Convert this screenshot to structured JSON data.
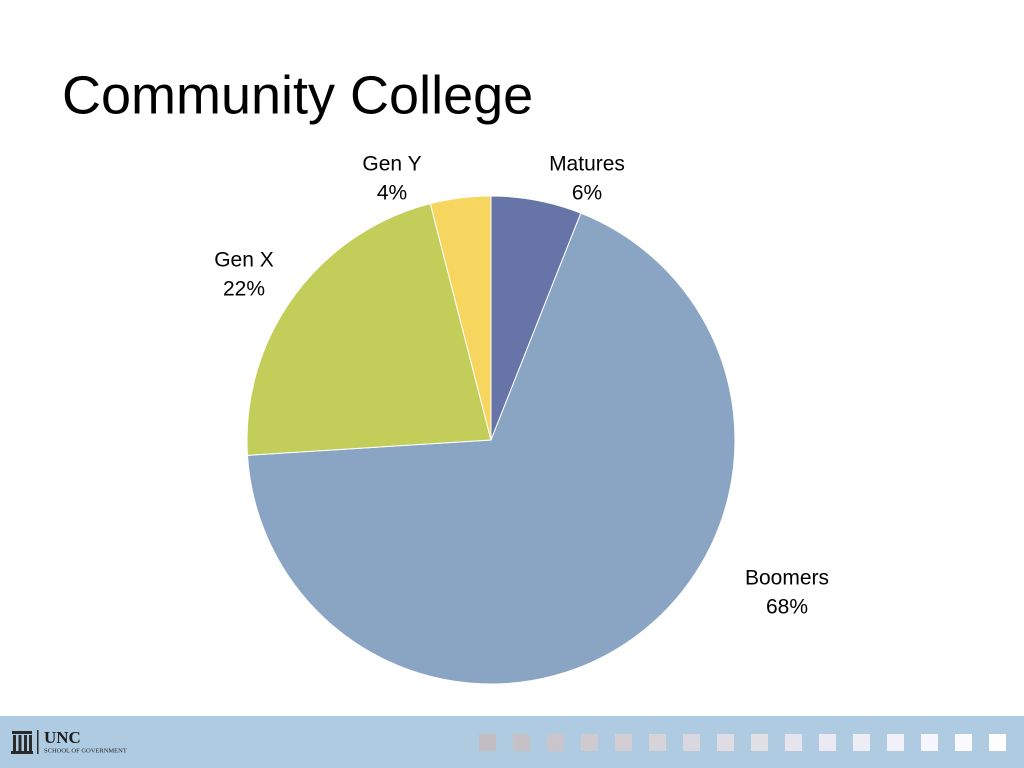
{
  "title": "Community College",
  "chart_data": {
    "type": "pie",
    "categories": [
      "Matures",
      "Boomers",
      "Gen X",
      "Gen Y"
    ],
    "values": [
      6,
      68,
      22,
      4
    ],
    "value_labels": [
      "6%",
      "68%",
      "22%",
      "4%"
    ],
    "colors": [
      "#6774a7",
      "#8aa5c3",
      "#c3cd5a",
      "#f7d65f"
    ]
  },
  "footer": {
    "logo": "UNC",
    "subtitle": "SCHOOL OF GOVERNMENT"
  }
}
